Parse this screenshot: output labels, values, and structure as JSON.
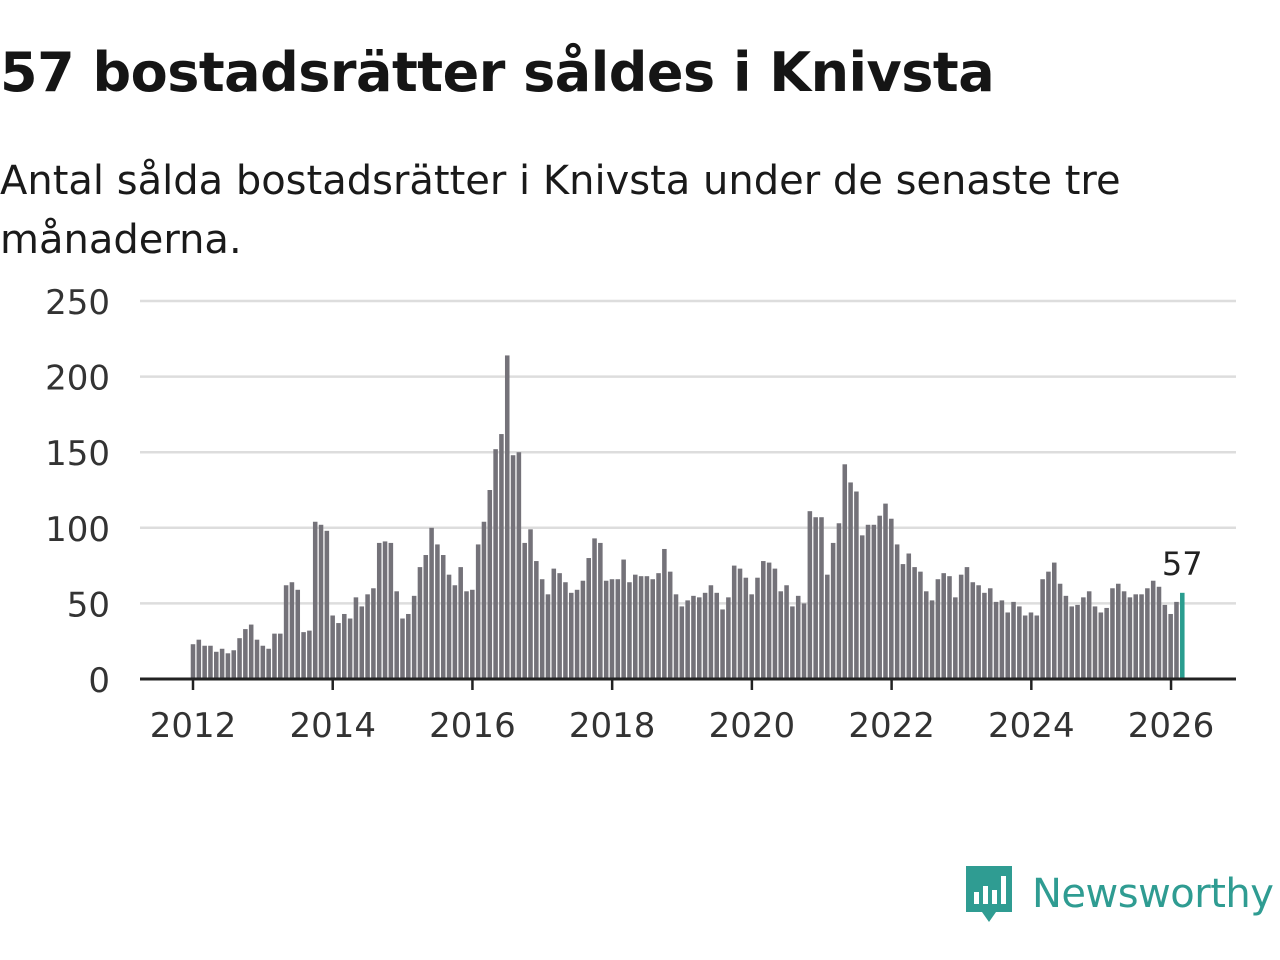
{
  "title": "57 bostadsrätter såldes i Knivsta",
  "subtitle": "Antal sålda bostadsrätter i Knivsta under de senaste tre månaderna.",
  "brand": {
    "name": "Newsworthy",
    "icon": "newsworthy-logo-icon",
    "color": "#2f9c92"
  },
  "chart_data": {
    "type": "bar",
    "title": "57 bostadsrätter såldes i Knivsta",
    "xlabel": "",
    "ylabel": "",
    "ylim": [
      0,
      250
    ],
    "yticks": [
      "0",
      "50",
      "100",
      "150",
      "200",
      "250"
    ],
    "xticks": [
      "2012",
      "2014",
      "2016",
      "2018",
      "2020",
      "2022",
      "2024",
      "2026"
    ],
    "x_start": 2012.0,
    "x_step": 0.0833,
    "grid": true,
    "colors": {
      "bar": "#747279",
      "highlight": "#2a9d8f",
      "grid": "#dddddd",
      "axis": "#222222"
    },
    "values": [
      23,
      26,
      22,
      22,
      18,
      20,
      17,
      19,
      27,
      33,
      36,
      26,
      22,
      20,
      30,
      30,
      62,
      64,
      59,
      31,
      32,
      104,
      102,
      98,
      42,
      37,
      43,
      40,
      54,
      48,
      56,
      60,
      90,
      91,
      90,
      58,
      40,
      43,
      55,
      74,
      82,
      100,
      89,
      82,
      69,
      62,
      74,
      58,
      59,
      89,
      104,
      125,
      152,
      162,
      214,
      148,
      150,
      90,
      99,
      78,
      66,
      56,
      73,
      70,
      64,
      57,
      59,
      65,
      80,
      93,
      90,
      65,
      66,
      66,
      79,
      64,
      69,
      68,
      68,
      66,
      70,
      86,
      71,
      56,
      48,
      52,
      55,
      54,
      57,
      62,
      57,
      46,
      54,
      75,
      73,
      67,
      56,
      67,
      78,
      77,
      73,
      58,
      62,
      48,
      55,
      50,
      111,
      107,
      107,
      69,
      90,
      103,
      142,
      130,
      124,
      95,
      102,
      102,
      108,
      116,
      106,
      89,
      76,
      83,
      74,
      71,
      58,
      52,
      66,
      70,
      68,
      54,
      69,
      74,
      64,
      62,
      57,
      60,
      51,
      52,
      44,
      51,
      48,
      42,
      44,
      42,
      66,
      71,
      77,
      63,
      55,
      48,
      49,
      54,
      58,
      48,
      44,
      47,
      60,
      63,
      58,
      54,
      56,
      56,
      60,
      65,
      61,
      49,
      43,
      51,
      57
    ],
    "highlight_label": "57"
  }
}
